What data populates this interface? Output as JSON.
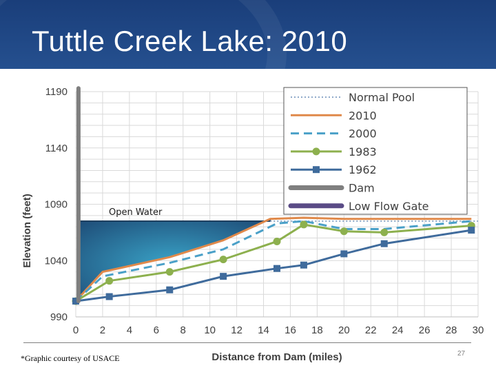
{
  "slide": {
    "title": "Tuttle Creek Lake: 2010",
    "footnote": "*Graphic courtesy of USACE",
    "page_number": "27"
  },
  "chart_data": {
    "type": "line",
    "xlabel": "Distance from Dam (miles)",
    "ylabel": "Elevation (feet)",
    "xlim": [
      0,
      30
    ],
    "ylim": [
      990,
      1190
    ],
    "xticks": [
      0,
      2,
      4,
      6,
      8,
      10,
      12,
      14,
      16,
      18,
      20,
      22,
      24,
      26,
      28,
      30
    ],
    "yticks": [
      990,
      1040,
      1090,
      1140,
      1190
    ],
    "grid": true,
    "legend_position": "top-right",
    "annotation": "Open Water",
    "colors": {
      "normal_pool": "#8ea9c9",
      "2010": "#e0894a",
      "2000": "#4aa0c8",
      "1983": "#8db04e",
      "1962": "#3f6b9c",
      "dam": "#7f7f7f",
      "low_flow_gate": "#5a4b86",
      "open_water": "#2f6e90"
    },
    "series": [
      {
        "name": "Normal Pool",
        "style": "dotted",
        "x": [
          14.5,
          30
        ],
        "y": [
          1075,
          1075
        ]
      },
      {
        "name": "2010",
        "style": "solid",
        "x": [
          0,
          2,
          7,
          11,
          14.5,
          17,
          20,
          23,
          29.5
        ],
        "y": [
          1004,
          1030,
          1043,
          1058,
          1077,
          1078,
          1077,
          1077,
          1077
        ]
      },
      {
        "name": "2000",
        "style": "dashed",
        "x": [
          0,
          2,
          7,
          11,
          15,
          17,
          20,
          23,
          29.5
        ],
        "y": [
          1004,
          1026,
          1038,
          1050,
          1073,
          1075,
          1068,
          1068,
          1075
        ]
      },
      {
        "name": "1983",
        "style": "solid-marker-circle",
        "x": [
          0,
          2.5,
          7,
          11,
          15,
          17,
          20,
          23,
          29.5
        ],
        "y": [
          1004,
          1022,
          1030,
          1041,
          1057,
          1072,
          1066,
          1065,
          1071
        ]
      },
      {
        "name": "1962",
        "style": "solid-marker-square",
        "x": [
          0,
          2.5,
          7,
          11,
          15,
          17,
          20,
          23,
          29.5
        ],
        "y": [
          1004,
          1008,
          1014,
          1026,
          1033,
          1036,
          1046,
          1055,
          1067
        ]
      },
      {
        "name": "Dam",
        "style": "thick",
        "x": [
          0.2,
          0.2
        ],
        "y": [
          1004,
          1193
        ]
      },
      {
        "name": "Low Flow Gate",
        "style": "thick",
        "x": [],
        "y": []
      }
    ]
  }
}
